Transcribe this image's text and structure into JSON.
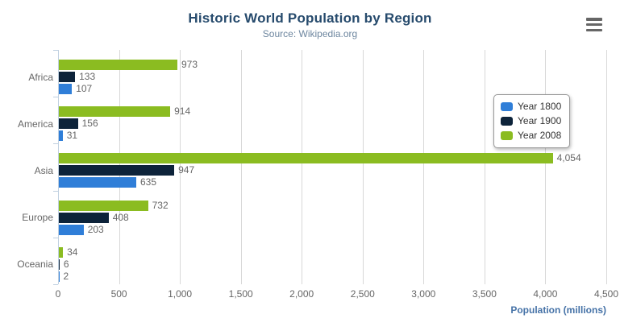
{
  "header": {
    "title": "Historic World Population by Region",
    "subtitle": "Source: Wikipedia.org",
    "menu_icon": "hamburger-icon"
  },
  "chart_data": {
    "type": "bar",
    "orientation": "horizontal",
    "title": "Historic World Population by Region",
    "subtitle": "Source: Wikipedia.org",
    "categories": [
      "Africa",
      "America",
      "Asia",
      "Europe",
      "Oceania"
    ],
    "series": [
      {
        "name": "Year 1800",
        "color": "#2f7ed8",
        "values": [
          107,
          31,
          635,
          203,
          2
        ]
      },
      {
        "name": "Year 1900",
        "color": "#0d233a",
        "values": [
          133,
          156,
          947,
          408,
          6
        ]
      },
      {
        "name": "Year 2008",
        "color": "#8bbc21",
        "values": [
          973,
          914,
          4054,
          732,
          34
        ]
      }
    ],
    "series_display_order_top_to_bottom": [
      "Year 2008",
      "Year 1900",
      "Year 1800"
    ],
    "data_labels": true,
    "xlabel": "Population (millions)",
    "xlim": [
      0,
      4500
    ],
    "x_tick_labels": [
      "0",
      "500",
      "1,000",
      "1,500",
      "2,000",
      "2,500",
      "3,000",
      "3,500",
      "4,000",
      "4,500"
    ],
    "grid": true,
    "legend_position": "right-upper",
    "colors": {
      "grid_line": "#d8d8d8",
      "axis_line": "#c0d0e0",
      "tick_text": "#666666",
      "data_label_text": "#666666",
      "category_text": "#666666",
      "title_text": "#274b6d",
      "subtitle_text": "#6d869f",
      "axis_title_text": "#4572a7",
      "legend_text": "#333333",
      "menu_icon": "#666666"
    }
  }
}
